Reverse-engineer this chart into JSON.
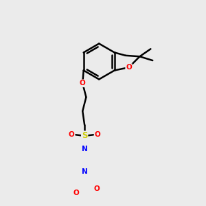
{
  "bg_color": "#ebebeb",
  "atom_colors": {
    "C": "#000000",
    "N": "#0000ff",
    "O": "#ff0000",
    "S": "#cccc00"
  },
  "bond_color": "#000000",
  "bond_width": 1.8,
  "dbo": 0.055
}
